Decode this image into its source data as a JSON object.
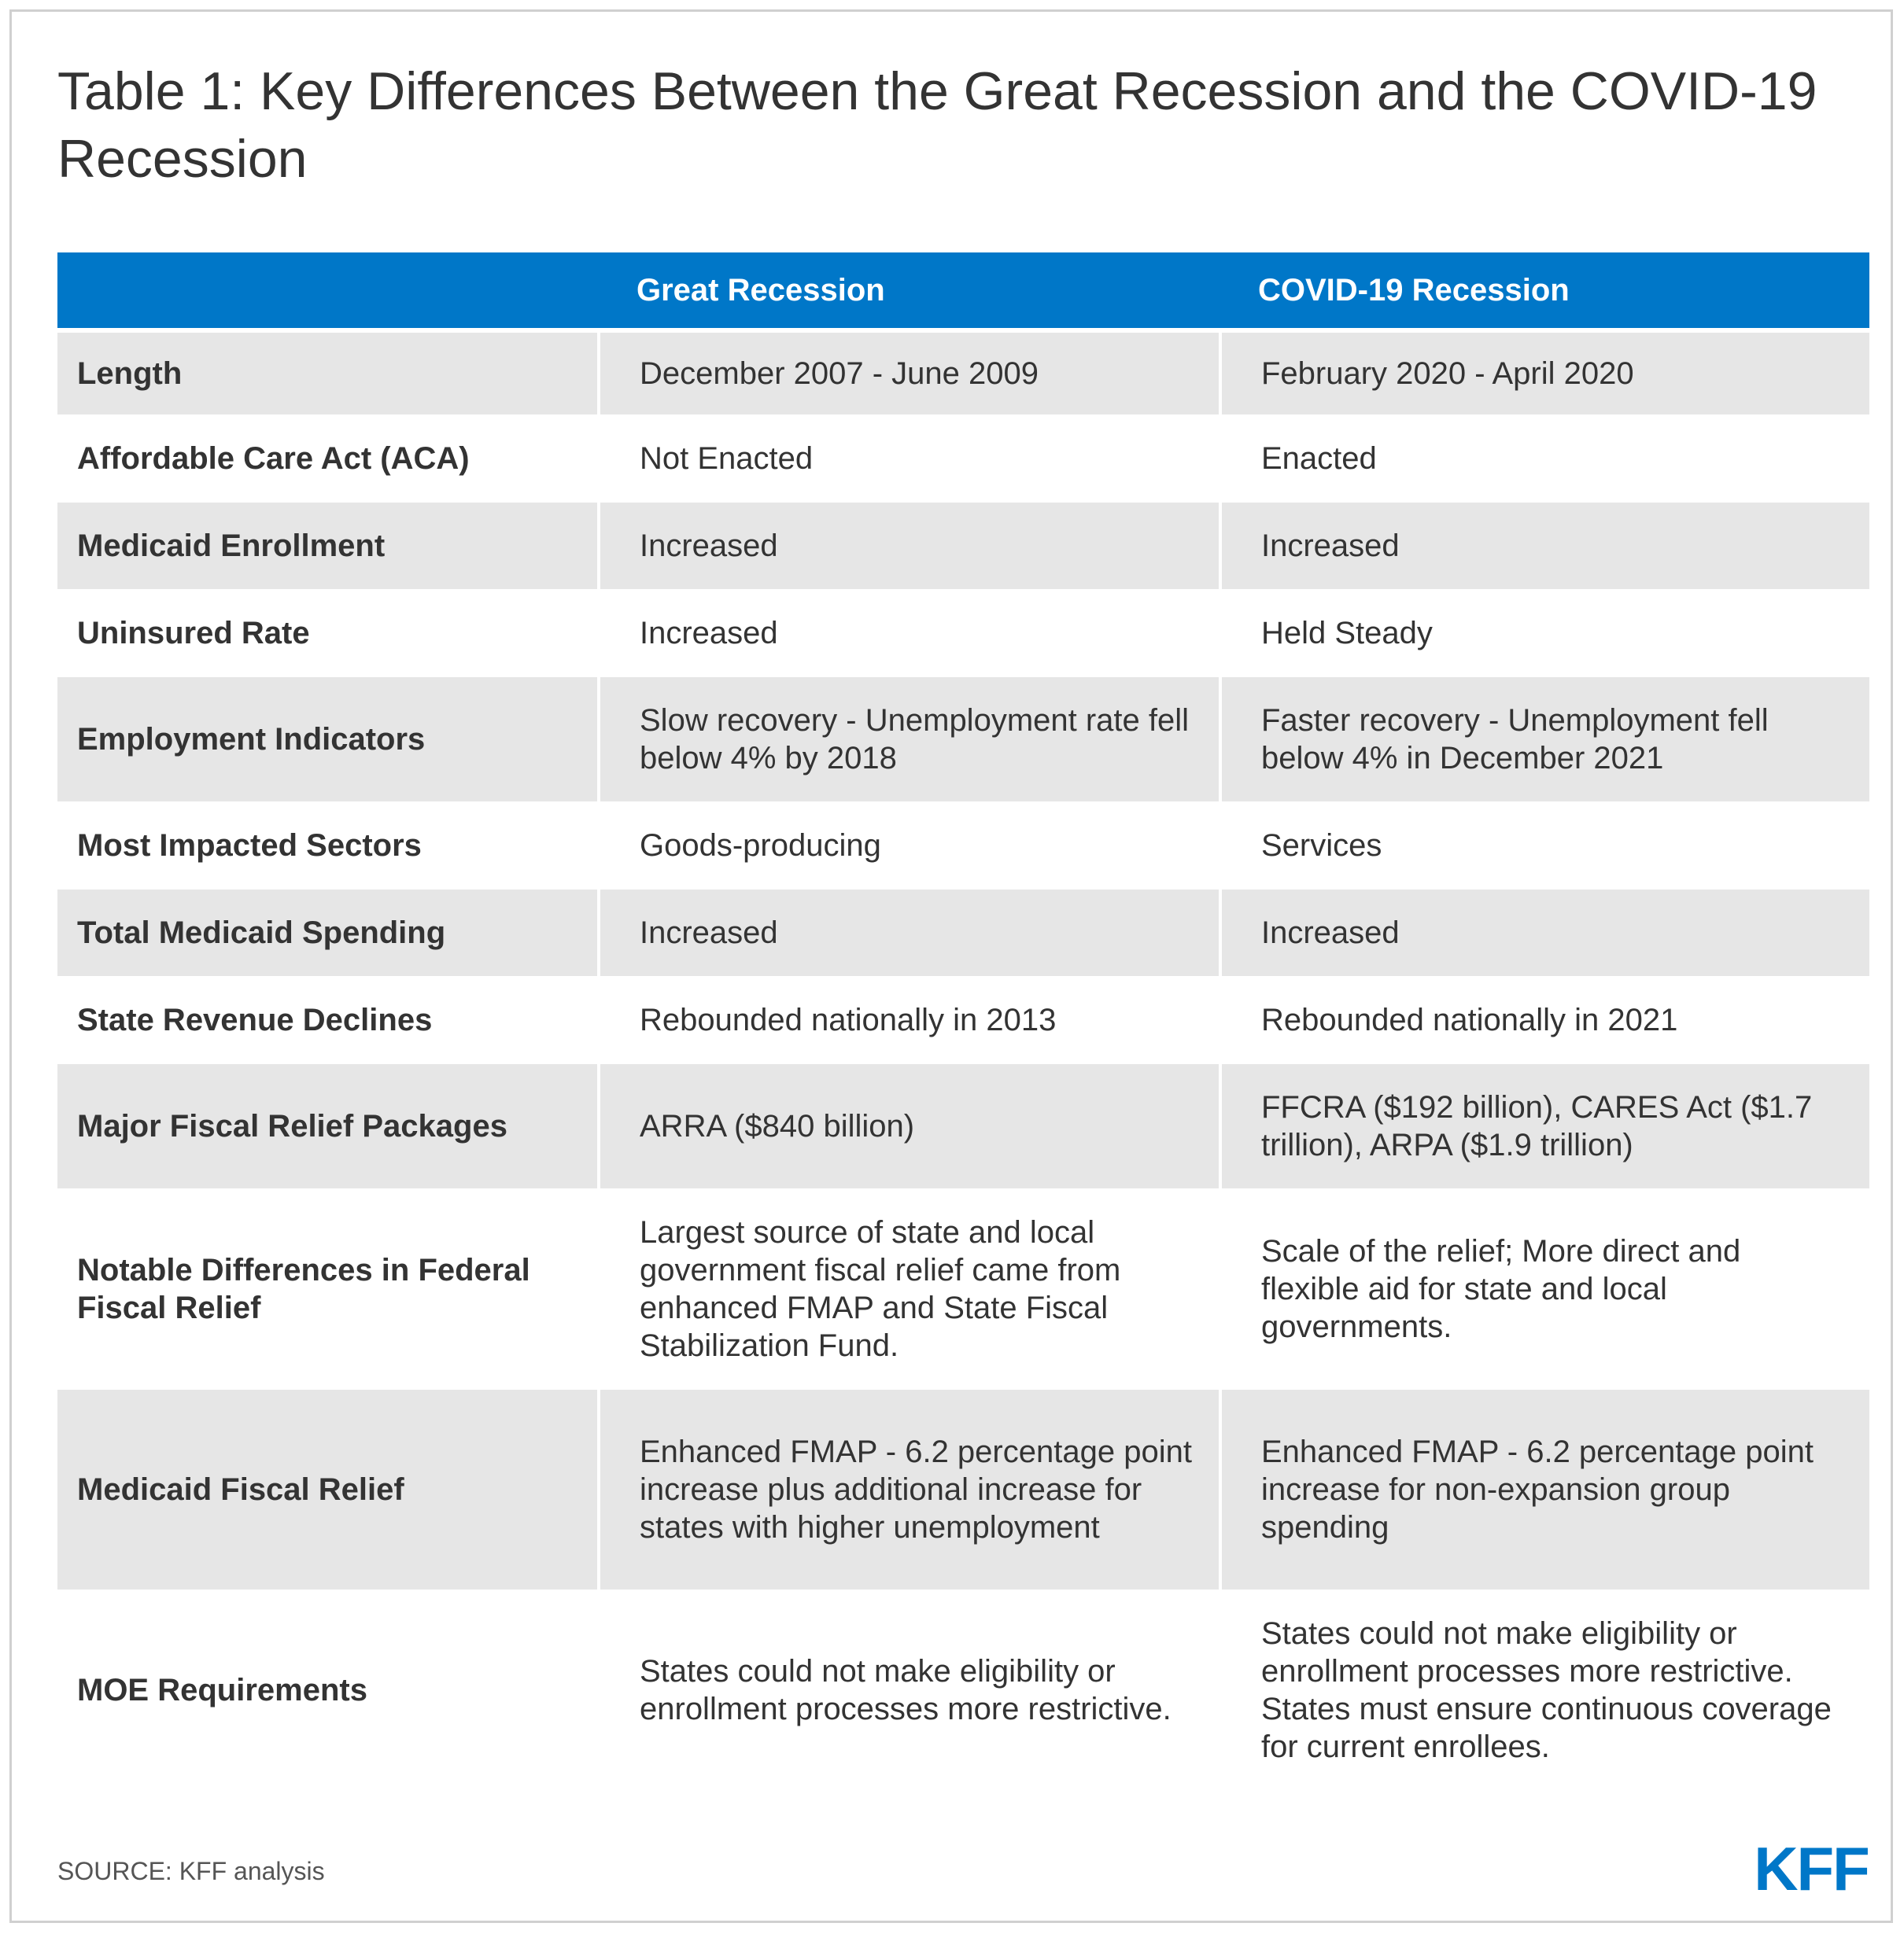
{
  "title": "Table 1: Key Differences Between the Great Recession and the COVID-19 Recession",
  "table": {
    "headers": [
      "",
      "Great Recession",
      "COVID-19 Recession"
    ],
    "rows": [
      {
        "label": "Length",
        "great": "December 2007 - June 2009",
        "covid": "February 2020 - April 2020"
      },
      {
        "label": "Affordable Care Act (ACA)",
        "great": "Not Enacted",
        "covid": "Enacted"
      },
      {
        "label": "Medicaid Enrollment",
        "great": "Increased",
        "covid": "Increased"
      },
      {
        "label": "Uninsured Rate",
        "great": "Increased",
        "covid": "Held Steady"
      },
      {
        "label": "Employment Indicators",
        "great": "Slow recovery - Unemployment rate fell below 4% by 2018",
        "covid": "Faster recovery - Unemployment fell below 4% in December 2021"
      },
      {
        "label": "Most Impacted Sectors",
        "great": "Goods-producing",
        "covid": "Services"
      },
      {
        "label": "Total Medicaid Spending",
        "great": "Increased",
        "covid": "Increased"
      },
      {
        "label": "State Revenue Declines",
        "great": "Rebounded nationally in 2013",
        "covid": "Rebounded nationally in 2021"
      },
      {
        "label": "Major Fiscal Relief Packages",
        "great": "ARRA ($840 billion)",
        "covid": "FFCRA ($192 billion), CARES Act ($1.7 trillion), ARPA ($1.9 trillion)"
      },
      {
        "label": "Notable Differences in Federal Fiscal Relief",
        "great": "Largest source of state and local government fiscal relief came from enhanced FMAP and State Fiscal Stabilization Fund.",
        "covid": "Scale of the relief; More direct and flexible aid for state and local governments."
      },
      {
        "label": "Medicaid Fiscal Relief",
        "great": "Enhanced FMAP - 6.2 percentage point increase plus additional increase for states with higher unemployment",
        "covid": "Enhanced FMAP - 6.2 percentage point increase for non-expansion group spending"
      },
      {
        "label": "MOE Requirements",
        "great": "States could not make eligibility or enrollment processes more restrictive.",
        "covid": "States could not make eligibility or enrollment processes more restrictive. States must ensure continuous coverage for current enrollees."
      }
    ]
  },
  "source": "SOURCE: KFF analysis",
  "logo": {
    "text": "KFF",
    "color": "#0077c8"
  },
  "colors": {
    "header_bg": "#0077c8",
    "header_text": "#ffffff",
    "row_shade": "#e6e6e6",
    "text": "#333333"
  }
}
